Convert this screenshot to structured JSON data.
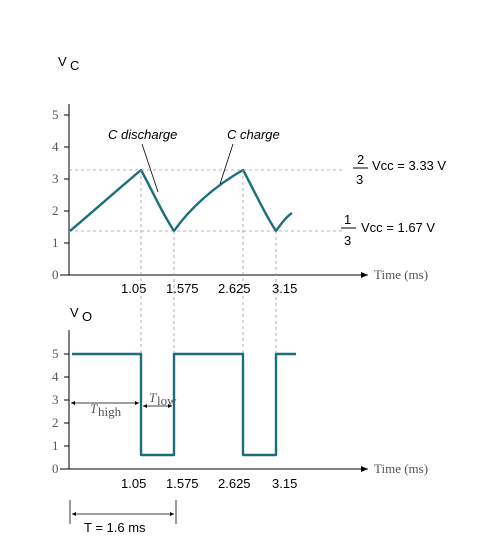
{
  "top_plot": {
    "y_label": "V",
    "y_label_sub": "C",
    "x_label": "Time (ms)",
    "y_ticks": [
      "5",
      "4",
      "3",
      "2",
      "1",
      "0"
    ],
    "x_ticks": [
      "1.05",
      "1.575",
      "2.625",
      "3.15"
    ],
    "annotation_discharge": "C discharge",
    "annotation_charge": "C charge",
    "upper_threshold": {
      "num": "2",
      "den": "3",
      "text": "Vcc = 3.33 V",
      "value": 3.33
    },
    "lower_threshold": {
      "num": "1",
      "den": "3",
      "text": "Vcc = 1.67 V",
      "value": 1.67
    }
  },
  "bottom_plot": {
    "y_label": "V",
    "y_label_sub": "O",
    "x_label": "Time (ms)",
    "y_ticks": [
      "5",
      "4",
      "3",
      "2",
      "1",
      "0"
    ],
    "x_ticks": [
      "1.05",
      "1.575",
      "2.625",
      "3.15"
    ],
    "t_high_label": "T",
    "t_high_sub": "high",
    "t_low_label": "T",
    "t_low_sub": "low",
    "period_label": "T = 1.6 ms"
  },
  "colors": {
    "waveform": "#1c6e7e",
    "guides": "#999999",
    "axes": "#000000"
  }
}
